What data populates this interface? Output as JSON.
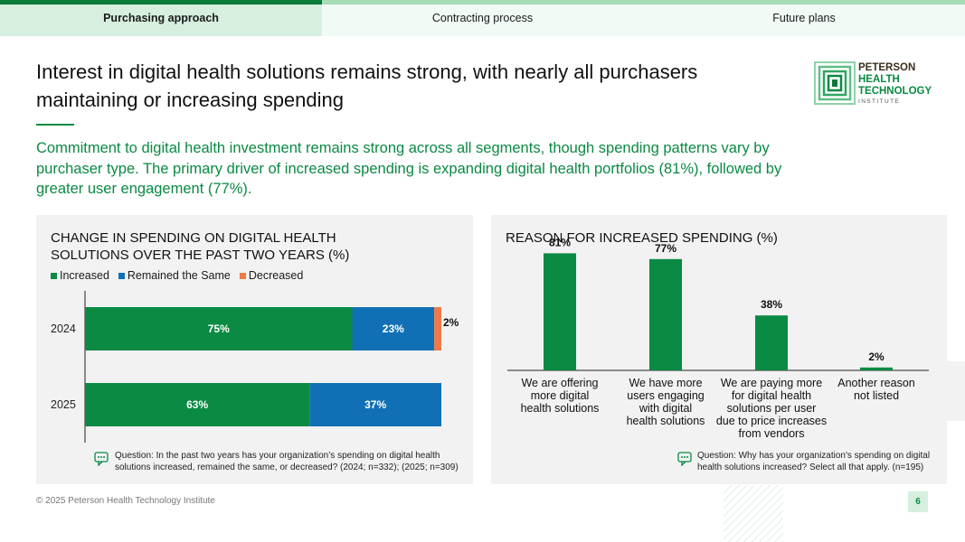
{
  "tabs": [
    {
      "label": "Purchasing approach",
      "active": true
    },
    {
      "label": "Contracting process",
      "active": false
    },
    {
      "label": "Future plans",
      "active": false
    }
  ],
  "title": "Interest in digital health solutions remains strong, with nearly all purchasers maintaining or increasing spending",
  "subtitle": "Commitment to digital health investment remains strong across all segments, though spending patterns vary by purchaser type. The primary driver of increased spending is expanding digital health portfolios (81%), followed by greater user engagement (77%).",
  "logo": {
    "line1": "PETERSON",
    "line2": "HEALTH",
    "line3": "TECHNOLOGY",
    "line4": "INSTITUTE"
  },
  "colors": {
    "increased": "#0a8a43",
    "same": "#1170b5",
    "decreased": "#ee7a4a",
    "accent": "#0a8a43"
  },
  "chart_data": [
    {
      "type": "bar",
      "orientation": "horizontal-stacked",
      "title": "CHANGE IN SPENDING ON DIGITAL HEALTH SOLUTIONS OVER THE PAST TWO YEARS (%)",
      "categories": [
        "2024",
        "2025"
      ],
      "series": [
        {
          "name": "Increased",
          "values": [
            75,
            63
          ]
        },
        {
          "name": "Remained the Same",
          "values": [
            23,
            37
          ]
        },
        {
          "name": "Decreased",
          "values": [
            2,
            0
          ]
        }
      ],
      "legend_position": "top-left",
      "note": "Question: In the past two years has your organization’s spending on digital health solutions increased, remained the same, or decreased? (2024; n=332); (2025; n=309)"
    },
    {
      "type": "bar",
      "title": "REASON FOR INCREASED SPENDING (%)",
      "categories": [
        "We are offering more digital health solutions",
        "We have more users engaging with digital health solutions",
        "We are paying more for digital health solutions per user due to price increases from vendors",
        "Another reason not listed"
      ],
      "category_lines": [
        [
          "We are offering",
          "more digital",
          "health solutions"
        ],
        [
          "We have more",
          "users engaging",
          "with digital",
          "health solutions"
        ],
        [
          "We are paying more",
          "for digital health",
          "solutions per user",
          "due to price increases",
          "from vendors"
        ],
        [
          "Another reason",
          "not listed"
        ]
      ],
      "values": [
        81,
        77,
        38,
        2
      ],
      "ylim": [
        0,
        100
      ],
      "note": "Question: Why has your organization's spending on digital health solutions increased? Select all that apply. (n=195)"
    }
  ],
  "footer": "© 2025 Peterson Health Technology Institute",
  "page_number": "6"
}
